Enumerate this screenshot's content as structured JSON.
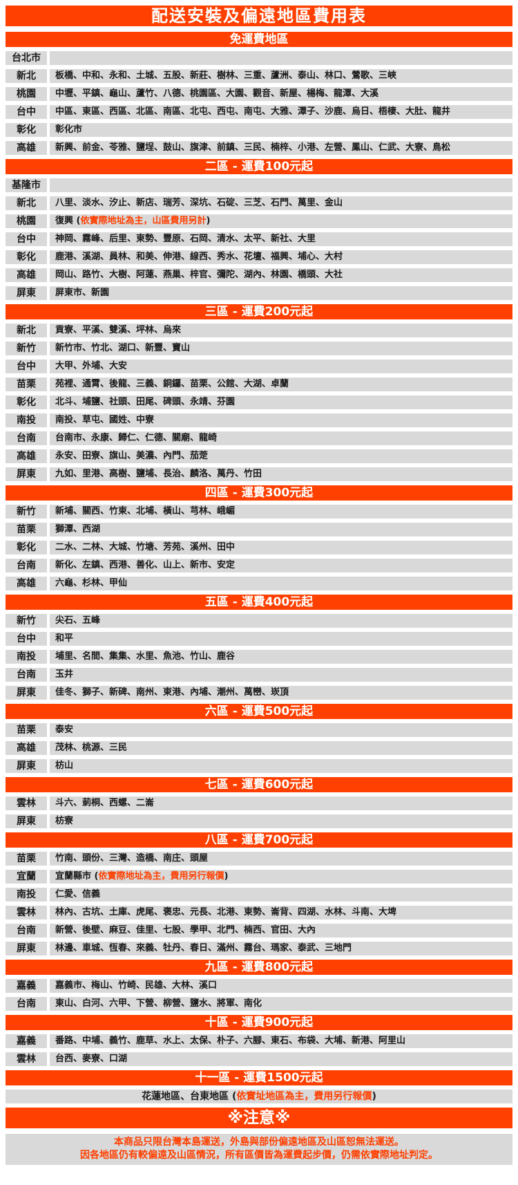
{
  "title": "配送安裝及偏遠地區費用表",
  "colors": {
    "accent": "#ff4000",
    "row_bg": "#d9d9d9",
    "header_text": "#ffffff"
  },
  "sections": [
    {
      "header": "免運費地區",
      "rows": [
        {
          "label": "台北市",
          "parts": []
        },
        {
          "label": "新北",
          "parts": [
            {
              "text": "板橋、中和、永和、土城、五股、新莊、樹林、三重、蘆洲、泰山、林口、鶯歌、三峽",
              "red": false
            }
          ]
        },
        {
          "label": "桃園",
          "parts": [
            {
              "text": "中壢、平鎮、龜山、蘆竹、八德、桃園區、大園、觀音、新屋、楊梅、龍潭、大溪",
              "red": false
            }
          ]
        },
        {
          "label": "台中",
          "parts": [
            {
              "text": "中區、東區、西區、北區、南區、北屯、西屯、南屯、大雅、潭子、沙鹿、烏日、梧棲、大肚、龍井",
              "red": false
            }
          ]
        },
        {
          "label": "彰化",
          "parts": [
            {
              "text": "彰化市",
              "red": false
            }
          ]
        },
        {
          "label": "高雄",
          "parts": [
            {
              "text": "新興、前金、苓雅、鹽埕、鼓山、旗津、前鎮、三民、楠梓、小港、左營、鳳山、仁武、大寮、鳥松",
              "red": false
            }
          ]
        }
      ]
    },
    {
      "header": "二區 - 運費100元起",
      "rows": [
        {
          "label": "基隆市",
          "parts": []
        },
        {
          "label": "新北",
          "parts": [
            {
              "text": "八里、淡水、汐止、新店、瑞芳、深坑、石碇、三芝、石門、萬里、金山",
              "red": false
            }
          ]
        },
        {
          "label": "桃園",
          "parts": [
            {
              "text": "復興 (",
              "red": false
            },
            {
              "text": "依實際地址為主，山區費用另計",
              "red": true
            },
            {
              "text": ")",
              "red": false
            }
          ]
        },
        {
          "label": "台中",
          "parts": [
            {
              "text": "神岡、霧峰、后里、東勢、豐原、石岡、清水、太平、新社、大里",
              "red": false
            }
          ]
        },
        {
          "label": "彰化",
          "parts": [
            {
              "text": "鹿港、溪湖、員林、和美、伸港、線西、秀水、花壇、福興、埔心、大村",
              "red": false
            }
          ]
        },
        {
          "label": "高雄",
          "parts": [
            {
              "text": "岡山、路竹、大樹、阿蓮、燕巢、梓官、彌陀、湖內、林園、橋頭、大社",
              "red": false
            }
          ]
        },
        {
          "label": "屏東",
          "parts": [
            {
              "text": "屏東市、新園",
              "red": false
            }
          ]
        }
      ]
    },
    {
      "header": "三區 - 運費200元起",
      "rows": [
        {
          "label": "新北",
          "parts": [
            {
              "text": "貢寮、平溪、雙溪、坪林、烏來",
              "red": false
            }
          ]
        },
        {
          "label": "新竹",
          "parts": [
            {
              "text": "新竹市、竹北、湖口、新豐、寶山",
              "red": false
            }
          ]
        },
        {
          "label": "台中",
          "parts": [
            {
              "text": "大甲、外埔、大安",
              "red": false
            }
          ]
        },
        {
          "label": "苗栗",
          "parts": [
            {
              "text": "苑裡、通霄、後龍、三義、銅鑼、苗栗、公館、大湖、卓蘭",
              "red": false
            }
          ]
        },
        {
          "label": "彰化",
          "parts": [
            {
              "text": "北斗、埔鹽、社頭、田尾、碑頭、永靖、芬園",
              "red": false
            }
          ]
        },
        {
          "label": "南投",
          "parts": [
            {
              "text": "南投、草屯、國姓、中寮",
              "red": false
            }
          ]
        },
        {
          "label": "台南",
          "parts": [
            {
              "text": "台南市、永康、歸仁、仁德、關廟、龍崎",
              "red": false
            }
          ]
        },
        {
          "label": "高雄",
          "parts": [
            {
              "text": "永安、田寮、旗山、美濃、內門、茄萣",
              "red": false
            }
          ]
        },
        {
          "label": "屏東",
          "parts": [
            {
              "text": "九如、里港、高樹、鹽埔、長治、麟洛、萬丹、竹田",
              "red": false
            }
          ]
        }
      ]
    },
    {
      "header": "四區 - 運費300元起",
      "rows": [
        {
          "label": "新竹",
          "parts": [
            {
              "text": "新埔、關西、竹東、北埔、橫山、芎林、峨嵋",
              "red": false
            }
          ]
        },
        {
          "label": "苗栗",
          "parts": [
            {
              "text": "獅潭、西湖",
              "red": false
            }
          ]
        },
        {
          "label": "彰化",
          "parts": [
            {
              "text": "二水、二林、大城、竹塘、芳苑、溪州、田中",
              "red": false
            }
          ]
        },
        {
          "label": "台南",
          "parts": [
            {
              "text": "新化、左鎮、西港、善化、山上、新市、安定",
              "red": false
            }
          ]
        },
        {
          "label": "高雄",
          "parts": [
            {
              "text": "六龜、杉林、甲仙",
              "red": false
            }
          ]
        }
      ]
    },
    {
      "header": "五區 - 運費400元起",
      "rows": [
        {
          "label": "新竹",
          "parts": [
            {
              "text": "尖石、五峰",
              "red": false
            }
          ]
        },
        {
          "label": "台中",
          "parts": [
            {
              "text": "和平",
              "red": false
            }
          ]
        },
        {
          "label": "南投",
          "parts": [
            {
              "text": "埔里、名間、集集、水里、魚池、竹山、鹿谷",
              "red": false
            }
          ]
        },
        {
          "label": "台南",
          "parts": [
            {
              "text": "玉井",
              "red": false
            }
          ]
        },
        {
          "label": "屏東",
          "parts": [
            {
              "text": "佳冬、獅子、新碑、南州、東港、內埔、潮州、萬巒、崁頂",
              "red": false
            }
          ]
        }
      ]
    },
    {
      "header": "六區 - 運費500元起",
      "rows": [
        {
          "label": "苗栗",
          "parts": [
            {
              "text": "泰安",
              "red": false
            }
          ]
        },
        {
          "label": "高雄",
          "parts": [
            {
              "text": "茂林、桃源、三民",
              "red": false
            }
          ]
        },
        {
          "label": "屏東",
          "parts": [
            {
              "text": "枋山",
              "red": false
            }
          ]
        }
      ]
    },
    {
      "header": "七區 - 運費600元起",
      "rows": [
        {
          "label": "雲林",
          "parts": [
            {
              "text": "斗六、莿桐、西螺、二崙",
              "red": false
            }
          ]
        },
        {
          "label": "屏東",
          "parts": [
            {
              "text": "枋寮",
              "red": false
            }
          ]
        }
      ]
    },
    {
      "header": "八區 - 運費700元起",
      "rows": [
        {
          "label": "苗栗",
          "parts": [
            {
              "text": "竹南、頭份、三灣、造橋、南庄、頭屋",
              "red": false
            }
          ]
        },
        {
          "label": "宜蘭",
          "parts": [
            {
              "text": "宜蘭縣市 (",
              "red": false
            },
            {
              "text": "依實際地址為主，費用另行報價",
              "red": true
            },
            {
              "text": ")",
              "red": false
            }
          ]
        },
        {
          "label": "南投",
          "parts": [
            {
              "text": "仁愛、信義",
              "red": false
            }
          ]
        },
        {
          "label": "雲林",
          "parts": [
            {
              "text": "林內、古坑、土庫、虎尾、褒忠、元長、北港、東勢、崙背、四湖、水林、斗南、大埤",
              "red": false
            }
          ]
        },
        {
          "label": "台南",
          "parts": [
            {
              "text": "新營、後壁、麻豆、佳里、七股、學甲、北門、楠西、官田、大內",
              "red": false
            }
          ]
        },
        {
          "label": "屏東",
          "parts": [
            {
              "text": "林邊、車城、恆春、來義、牡丹、春日、滿州、霧台、瑪家、泰武、三地門",
              "red": false
            }
          ]
        }
      ]
    },
    {
      "header": "九區 - 運費800元起",
      "rows": [
        {
          "label": "嘉義",
          "parts": [
            {
              "text": "嘉義市、梅山、竹崎、民雄、大林、溪口",
              "red": false
            }
          ]
        },
        {
          "label": "台南",
          "parts": [
            {
              "text": "東山、白河、六甲、下營、柳營、鹽水、將軍、南化",
              "red": false
            }
          ]
        }
      ]
    },
    {
      "header": "十區 - 運費900元起",
      "rows": [
        {
          "label": "嘉義",
          "parts": [
            {
              "text": "番路、中埔、義竹、鹿草、水上、太保、朴子、六腳、東石、布袋、大埔、新港、阿里山",
              "red": false
            }
          ]
        },
        {
          "label": "雲林",
          "parts": [
            {
              "text": "台西、麥寮、口湖",
              "red": false
            }
          ]
        }
      ]
    },
    {
      "header": "十一區 - 運費1500元起",
      "rows": [
        {
          "label": null,
          "center": true,
          "parts": [
            {
              "text": "花蓮地區、台東地區 (",
              "red": false
            },
            {
              "text": "依實址地區為主，費用另行報價",
              "red": true
            },
            {
              "text": ")",
              "red": false
            }
          ]
        }
      ]
    }
  ],
  "notice": {
    "header": "※注意※",
    "lines": [
      "本商品只限台灣本島運送，外島與部份偏遠地區及山區恕無法運送。",
      "因各地區仍有較偏遠及山區情況，所有區價皆為運費起步價，仍需依實際地址判定。"
    ]
  }
}
